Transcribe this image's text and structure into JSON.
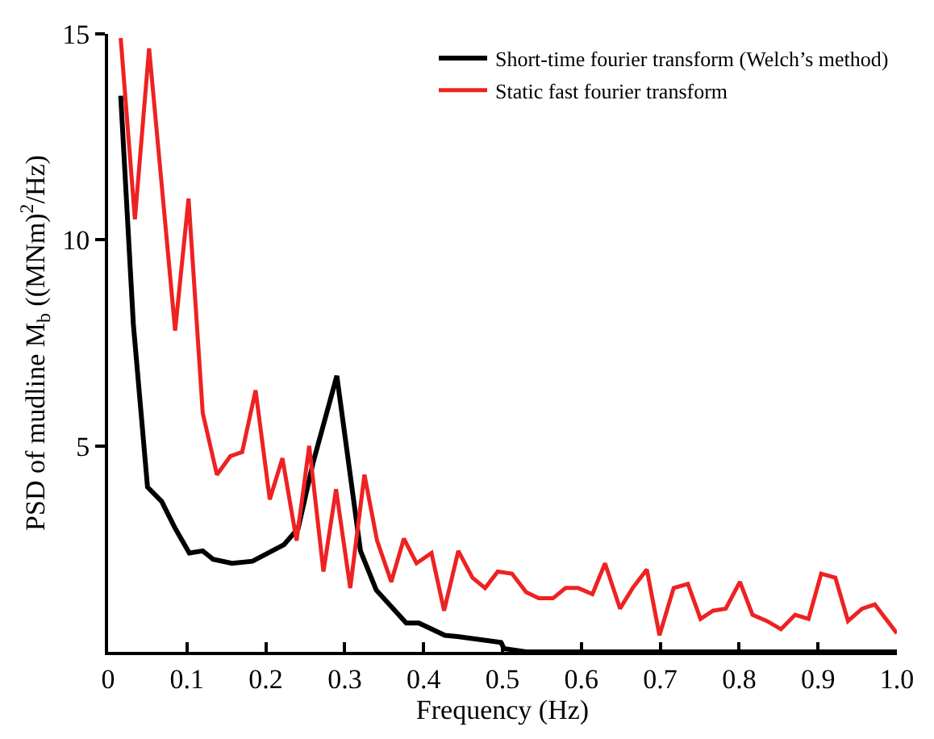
{
  "chart_data": {
    "type": "line",
    "xlabel": "Frequency (Hz)",
    "ylabel": "PSD of mudline M$_{b}$ ((MNm)$^{2}$/Hz)",
    "xlim": [
      0,
      1
    ],
    "ylim": [
      0,
      15
    ],
    "xticks": [
      0,
      0.1,
      0.2,
      0.3,
      0.4,
      0.5,
      0.6,
      0.7,
      0.8,
      0.9,
      {
        "value": 1,
        "label": "1.0"
      }
    ],
    "yticks": [
      5,
      10,
      15
    ],
    "legend": "top right",
    "marker": "none",
    "line_style": "solid",
    "series": [
      {
        "name": "Short-time fourier transform (Welch’s method)",
        "color": "#000000",
        "x": [
          0.016,
          0.032,
          0.05,
          0.068,
          0.085,
          0.103,
          0.12,
          0.133,
          0.157,
          0.183,
          0.203,
          0.223,
          0.241,
          0.26,
          0.29,
          0.32,
          0.34,
          0.378,
          0.394,
          0.427,
          0.443,
          0.498,
          0.502,
          0.53,
          0.6,
          0.7,
          0.8,
          0.9,
          1.0
        ],
        "values": [
          13.5,
          7.96,
          4.0,
          3.65,
          3.0,
          2.4,
          2.45,
          2.25,
          2.15,
          2.2,
          2.4,
          2.6,
          3.0,
          4.6,
          6.7,
          2.45,
          1.5,
          0.7,
          0.7,
          0.4,
          0.37,
          0.23,
          0.08,
          0,
          0,
          0,
          0,
          0,
          0
        ]
      },
      {
        "name": "Static fast fourier transform",
        "color": "#ee2222",
        "x": [
          0.016,
          0.034,
          0.052,
          0.085,
          0.102,
          0.12,
          0.138,
          0.155,
          0.17,
          0.187,
          0.205,
          0.221,
          0.239,
          0.255,
          0.273,
          0.289,
          0.307,
          0.325,
          0.341,
          0.359,
          0.375,
          0.391,
          0.41,
          0.426,
          0.444,
          0.462,
          0.478,
          0.494,
          0.512,
          0.53,
          0.546,
          0.564,
          0.58,
          0.596,
          0.614,
          0.63,
          0.649,
          0.665,
          0.683,
          0.699,
          0.717,
          0.735,
          0.751,
          0.767,
          0.783,
          0.801,
          0.817,
          0.835,
          0.853,
          0.871,
          0.888,
          0.904,
          0.922,
          0.938,
          0.956,
          0.972,
          0.986,
          1.0
        ],
        "values": [
          14.9,
          10.5,
          14.65,
          7.8,
          11.0,
          5.8,
          4.3,
          4.75,
          4.85,
          6.35,
          3.7,
          4.7,
          2.7,
          5.0,
          1.95,
          3.95,
          1.55,
          4.3,
          2.7,
          1.7,
          2.75,
          2.15,
          2.4,
          1.0,
          2.45,
          1.8,
          1.55,
          1.95,
          1.9,
          1.45,
          1.3,
          1.3,
          1.55,
          1.55,
          1.4,
          2.15,
          1.05,
          1.55,
          2.0,
          0.4,
          1.55,
          1.65,
          0.8,
          1.0,
          1.05,
          1.7,
          0.9,
          0.75,
          0.55,
          0.9,
          0.8,
          1.9,
          1.8,
          0.75,
          1.05,
          1.15,
          0.8,
          0.45
        ]
      }
    ]
  }
}
